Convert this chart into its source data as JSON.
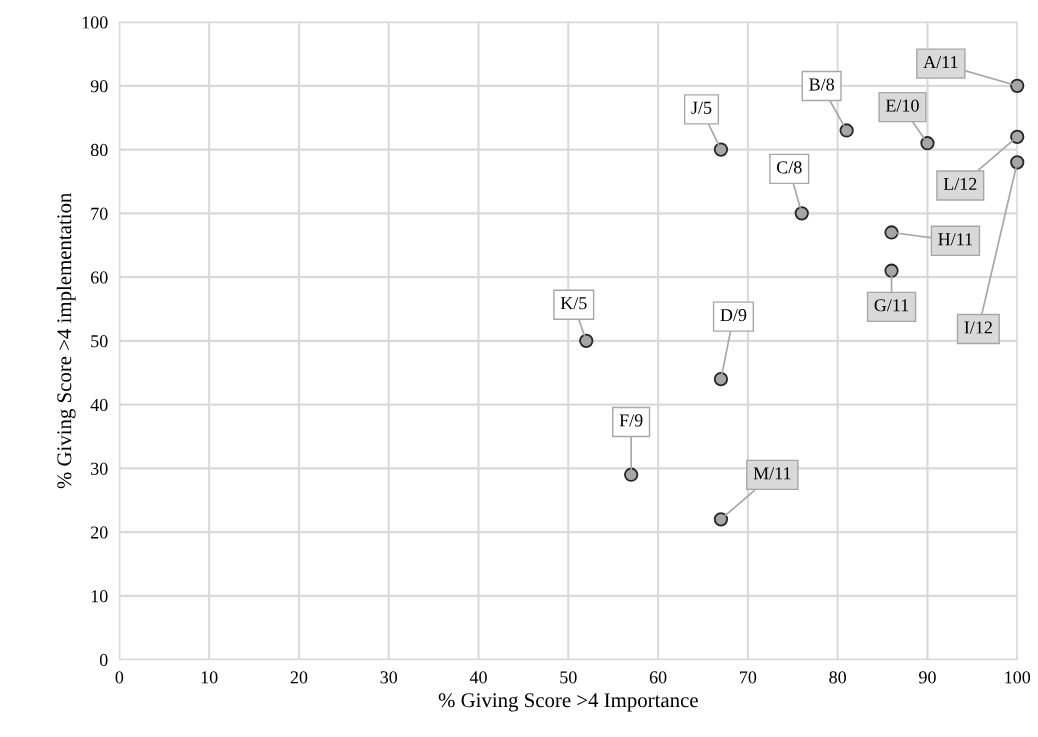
{
  "chart_data": {
    "type": "scatter",
    "xlabel": "% Giving Score >4 Importance",
    "ylabel": "% Giving Score >4 implementation",
    "series": [
      {
        "color": "#a6a6a6",
        "x": [
          100,
          81,
          76,
          67,
          90,
          57,
          86,
          86,
          100,
          67,
          52,
          100,
          67
        ],
        "values": [
          90,
          83,
          70,
          44,
          81,
          29,
          61,
          67,
          78,
          80,
          50,
          82,
          22
        ]
      }
    ],
    "annotations": [
      {
        "text": "A/11",
        "x": 100,
        "y": 90
      },
      {
        "text": "B/8",
        "x": 81,
        "y": 83
      },
      {
        "text": "C/8",
        "x": 76,
        "y": 70
      },
      {
        "text": "D/9",
        "x": 67,
        "y": 44
      },
      {
        "text": "E/10",
        "x": 90,
        "y": 81
      },
      {
        "text": "F/9",
        "x": 57,
        "y": 29
      },
      {
        "text": "G/11",
        "x": 86,
        "y": 61
      },
      {
        "text": "H/11",
        "x": 86,
        "y": 67
      },
      {
        "text": "I/12",
        "x": 100,
        "y": 78
      },
      {
        "text": "J/5",
        "x": 67,
        "y": 80
      },
      {
        "text": "K/5",
        "x": 52,
        "y": 50
      },
      {
        "text": "L/12",
        "x": 100,
        "y": 82
      },
      {
        "text": "M/11",
        "x": 67,
        "y": 22
      }
    ],
    "xlim": [
      0,
      100
    ],
    "ylim": [
      0,
      100
    ],
    "xticks": [
      0,
      10,
      20,
      30,
      40,
      50,
      60,
      70,
      80,
      90,
      100
    ],
    "yticks": [
      0,
      10,
      20,
      30,
      40,
      50,
      60,
      70,
      80,
      90,
      100
    ],
    "grid": true,
    "marker": "circle"
  }
}
